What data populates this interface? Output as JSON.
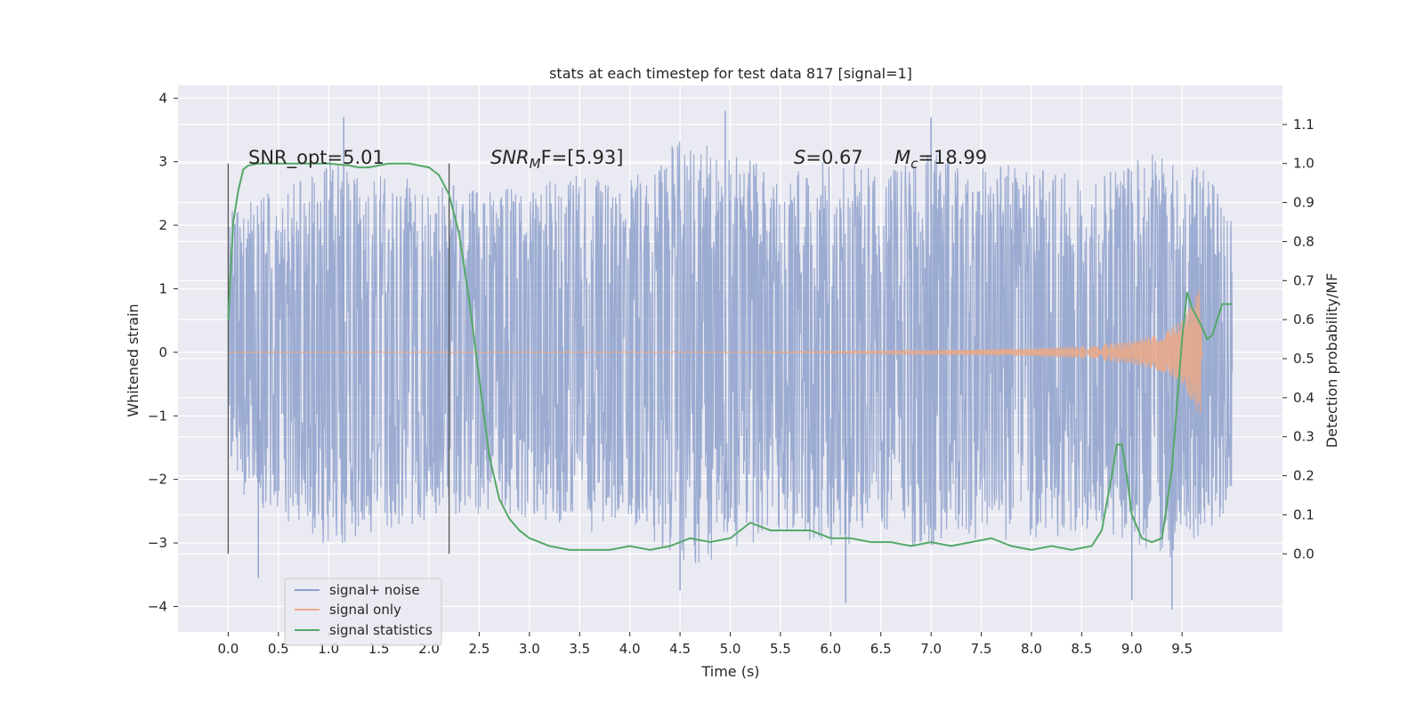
{
  "chart_data": {
    "type": "line",
    "title": "stats at each timestep for test data 817 [signal=1]",
    "xlabel": "Time (s)",
    "ylabel": "Whitened strain",
    "ylabel_right": "Detection probability/MF",
    "xlim": [
      -0.5,
      10.5
    ],
    "ylim": [
      -4.4,
      4.2
    ],
    "ylim_right": [
      -0.2,
      1.2
    ],
    "x_ticks": [
      0.0,
      0.5,
      1.0,
      1.5,
      2.0,
      2.5,
      3.0,
      3.5,
      4.0,
      4.5,
      5.0,
      5.5,
      6.0,
      6.5,
      7.0,
      7.5,
      8.0,
      8.5,
      9.0,
      9.5
    ],
    "x_tick_labels": [
      "0.0",
      "0.5",
      "1.0",
      "1.5",
      "2.0",
      "2.5",
      "3.0",
      "3.5",
      "4.0",
      "4.5",
      "5.0",
      "5.5",
      "6.0",
      "6.5",
      "7.0",
      "7.5",
      "8.0",
      "8.5",
      "9.0",
      "9.5"
    ],
    "y_ticks": [
      -4,
      -3,
      -2,
      -1,
      0,
      1,
      2,
      3,
      4
    ],
    "y_tick_labels": [
      "−4",
      "−3",
      "−2",
      "−1",
      "0",
      "1",
      "2",
      "3",
      "4"
    ],
    "y_right_ticks": [
      0.0,
      0.1,
      0.2,
      0.3,
      0.4,
      0.5,
      0.6,
      0.7,
      0.8,
      0.9,
      1.0,
      1.1
    ],
    "y_right_tick_labels": [
      "0.0",
      "0.1",
      "0.2",
      "0.3",
      "0.4",
      "0.5",
      "0.6",
      "0.7",
      "0.8",
      "0.9",
      "1.0",
      "1.1"
    ],
    "grid": true,
    "legend_position": "bottom-left",
    "series": [
      {
        "name": "signal+ noise",
        "axis": "left",
        "color": "#8da0cb",
        "x_range": [
          0.0,
          10.0
        ],
        "envelope": [
          [
            0.0,
            2.2
          ],
          [
            0.5,
            2.6
          ],
          [
            1.0,
            3.1
          ],
          [
            1.5,
            2.8
          ],
          [
            2.0,
            2.7
          ],
          [
            2.5,
            2.6
          ],
          [
            3.0,
            2.6
          ],
          [
            3.5,
            2.9
          ],
          [
            4.0,
            2.7
          ],
          [
            4.5,
            3.4
          ],
          [
            5.0,
            3.2
          ],
          [
            5.5,
            2.8
          ],
          [
            6.0,
            3.1
          ],
          [
            6.5,
            2.9
          ],
          [
            7.0,
            3.2
          ],
          [
            7.5,
            2.9
          ],
          [
            8.0,
            3.0
          ],
          [
            8.5,
            2.8
          ],
          [
            9.0,
            3.0
          ],
          [
            9.5,
            3.3
          ],
          [
            10.0,
            2.4
          ]
        ],
        "notable_peaks": [
          [
            1.15,
            3.7
          ],
          [
            4.95,
            3.8
          ],
          [
            7.0,
            3.7
          ],
          [
            6.15,
            -3.95
          ],
          [
            9.0,
            -3.9
          ],
          [
            9.4,
            -4.05
          ],
          [
            0.3,
            -3.55
          ],
          [
            4.5,
            -3.75
          ]
        ]
      },
      {
        "name": "signal only",
        "axis": "left",
        "color": "#e8a98a",
        "x_range": [
          0.0,
          9.7
        ],
        "envelope": [
          [
            0.0,
            0.0
          ],
          [
            5.0,
            0.01
          ],
          [
            7.0,
            0.03
          ],
          [
            8.0,
            0.06
          ],
          [
            8.5,
            0.1
          ],
          [
            9.0,
            0.18
          ],
          [
            9.3,
            0.3
          ],
          [
            9.5,
            0.5
          ],
          [
            9.6,
            0.8
          ],
          [
            9.68,
            1.05
          ],
          [
            9.7,
            0.0
          ]
        ]
      },
      {
        "name": "signal statistics",
        "axis": "right",
        "color": "#55a868",
        "x": [
          0.0,
          0.05,
          0.1,
          0.15,
          0.2,
          0.3,
          0.5,
          0.8,
          1.0,
          1.2,
          1.3,
          1.4,
          1.5,
          1.6,
          1.7,
          1.8,
          2.0,
          2.1,
          2.2,
          2.3,
          2.4,
          2.5,
          2.6,
          2.7,
          2.8,
          2.9,
          3.0,
          3.2,
          3.4,
          3.6,
          3.8,
          4.0,
          4.2,
          4.4,
          4.6,
          4.8,
          5.0,
          5.2,
          5.4,
          5.6,
          5.8,
          6.0,
          6.2,
          6.4,
          6.6,
          6.8,
          7.0,
          7.2,
          7.4,
          7.6,
          7.8,
          8.0,
          8.2,
          8.4,
          8.6,
          8.7,
          8.8,
          8.85,
          8.9,
          8.95,
          9.0,
          9.1,
          9.2,
          9.3,
          9.4,
          9.5,
          9.55,
          9.6,
          9.7,
          9.75,
          9.8,
          9.9,
          10.0
        ],
        "values": [
          0.6,
          0.85,
          0.93,
          0.985,
          0.995,
          1.0,
          1.0,
          1.0,
          1.0,
          0.995,
          0.99,
          0.99,
          0.995,
          1.0,
          1.0,
          1.0,
          0.99,
          0.97,
          0.92,
          0.82,
          0.65,
          0.45,
          0.25,
          0.14,
          0.09,
          0.06,
          0.04,
          0.02,
          0.01,
          0.01,
          0.01,
          0.02,
          0.01,
          0.02,
          0.04,
          0.03,
          0.04,
          0.08,
          0.06,
          0.06,
          0.06,
          0.04,
          0.04,
          0.03,
          0.03,
          0.02,
          0.03,
          0.02,
          0.03,
          0.04,
          0.02,
          0.01,
          0.02,
          0.01,
          0.02,
          0.06,
          0.2,
          0.28,
          0.28,
          0.2,
          0.1,
          0.04,
          0.03,
          0.04,
          0.22,
          0.55,
          0.67,
          0.63,
          0.58,
          0.55,
          0.56,
          0.64,
          0.64
        ]
      }
    ],
    "vertical_markers": [
      0.0,
      2.2
    ],
    "annotations": {
      "snr_opt": "SNR_opt=5.01",
      "snr_mf_base": "SNR",
      "snr_mf_sub": "M",
      "snr_mf_rest": "F=[5.93]",
      "s_var": "S",
      "s_value": "=0.67",
      "mc_var": "M",
      "mc_sub": "c",
      "mc_value": "=18.99"
    },
    "legend": {
      "items": [
        "signal+ noise",
        "signal only",
        "signal statistics"
      ]
    }
  }
}
